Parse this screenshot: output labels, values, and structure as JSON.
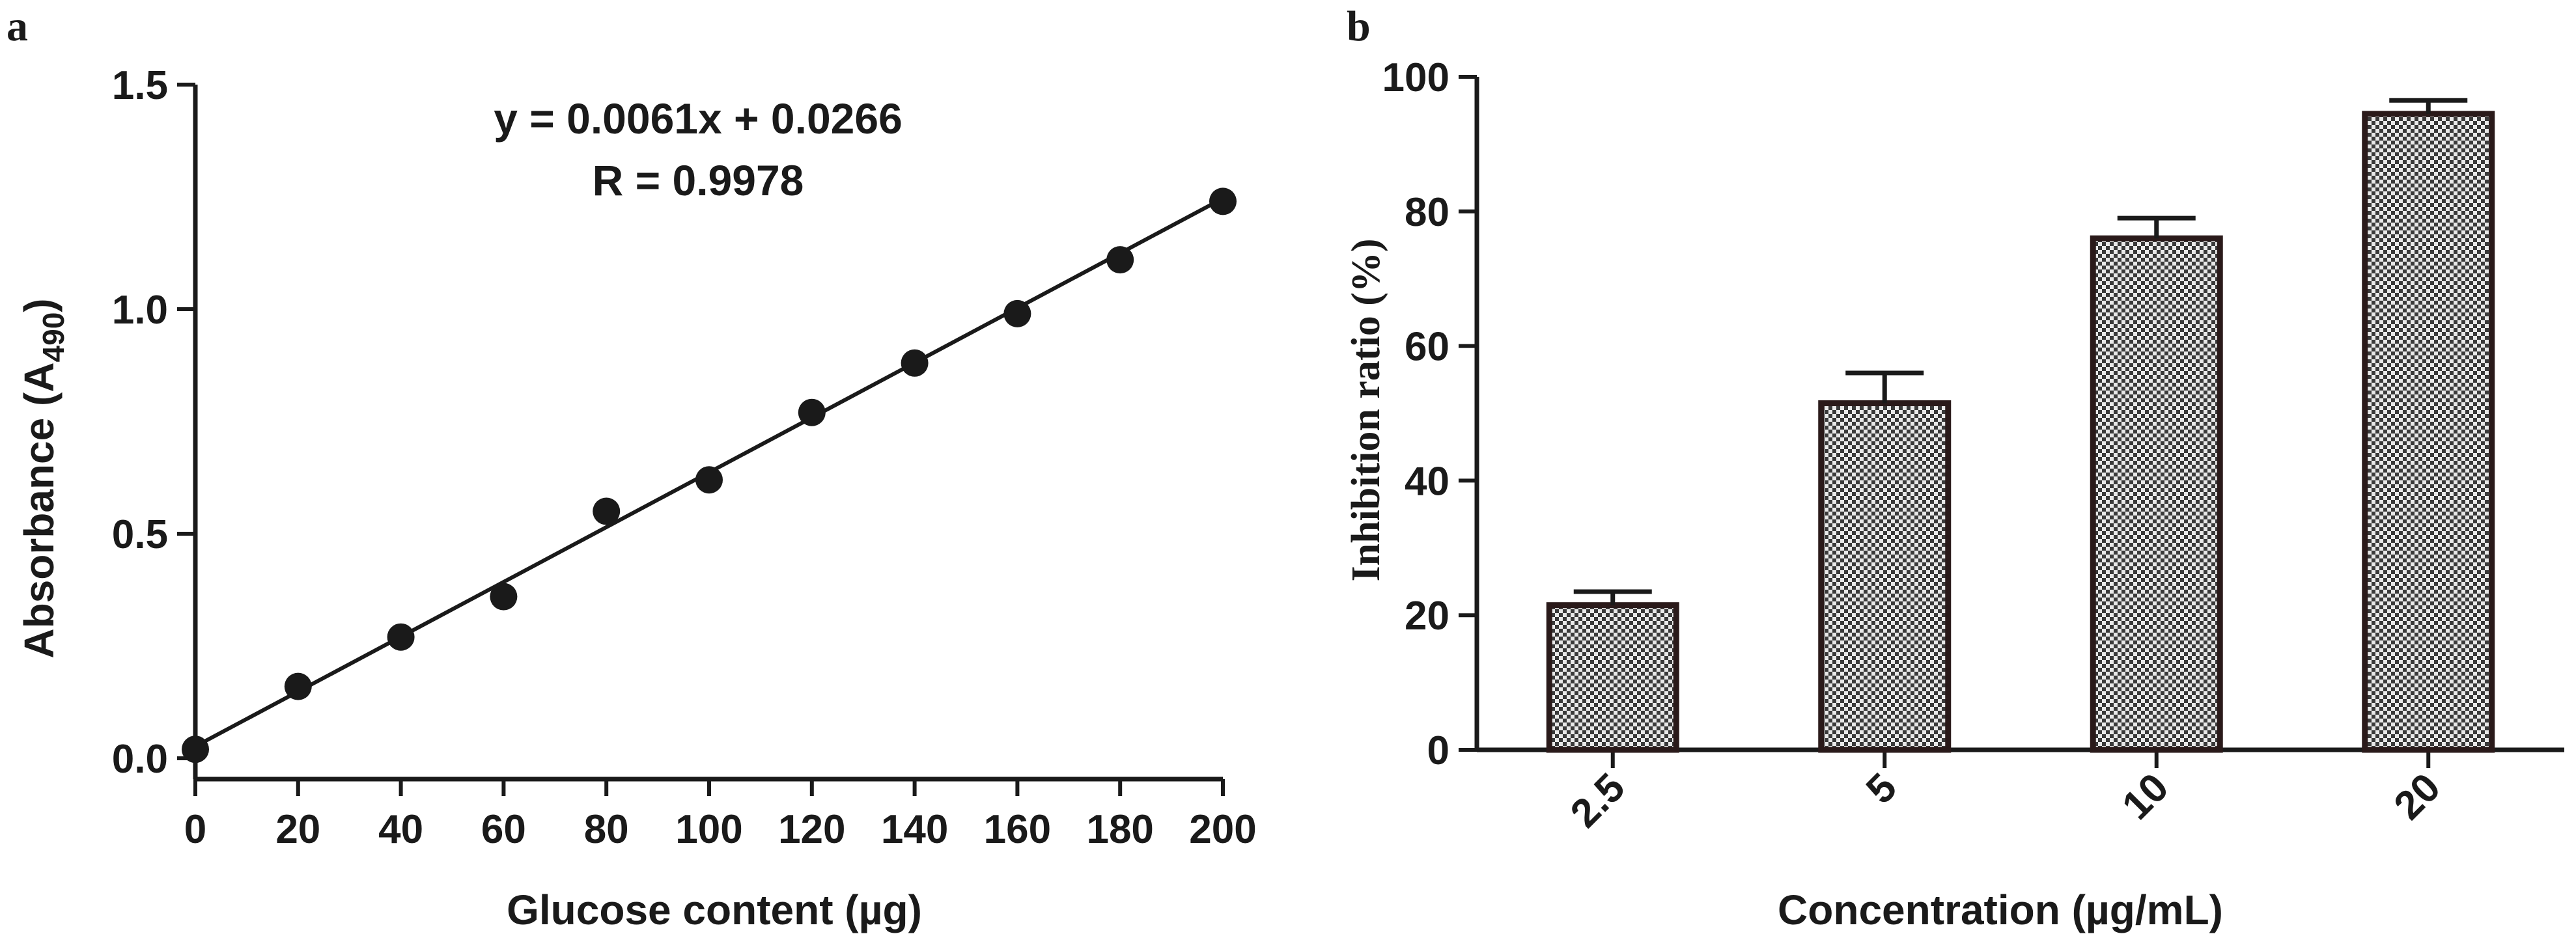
{
  "chart_data": [
    {
      "panel_label": "a",
      "type": "scatter",
      "title": "",
      "xlabel": "Glucose content (µg)",
      "ylabel_main": "Absorbance (A",
      "ylabel_sub": "490",
      "ylabel_close": ")",
      "xlim": [
        0,
        200
      ],
      "ylim": [
        0,
        1.5
      ],
      "x_ticks": [
        0,
        20,
        40,
        60,
        80,
        100,
        120,
        140,
        160,
        180,
        200
      ],
      "x_tick_labels": [
        "0",
        "20",
        "40",
        "60",
        "80",
        "100",
        "120",
        "140",
        "160",
        "180",
        "200"
      ],
      "y_ticks": [
        0,
        0.5,
        1.0,
        1.5
      ],
      "y_tick_labels": [
        "0.0",
        "0.5",
        "1.0",
        "1.5"
      ],
      "x": [
        0,
        20,
        40,
        60,
        80,
        100,
        120,
        140,
        160,
        180,
        200
      ],
      "y": [
        0.02,
        0.16,
        0.27,
        0.36,
        0.55,
        0.62,
        0.77,
        0.88,
        0.99,
        1.11,
        1.24
      ],
      "fit": {
        "slope": 0.0061,
        "intercept": 0.0266,
        "x_range": [
          0,
          200
        ]
      },
      "equation_text": "y = 0.0061x + 0.0266",
      "r_text": "R = 0.9978",
      "grid": false
    },
    {
      "panel_label": "b",
      "type": "bar",
      "title": "",
      "xlabel": "Concentration (µg/mL)",
      "ylabel": "Inhibition ratio (%)",
      "categories": [
        "2.5",
        "5",
        "10",
        "20"
      ],
      "values": [
        21.5,
        51.5,
        76,
        94.5
      ],
      "errors": [
        2,
        4.5,
        3,
        2
      ],
      "ylim": [
        0,
        100
      ],
      "y_ticks": [
        0,
        20,
        40,
        60,
        80,
        100
      ],
      "y_tick_labels": [
        "0",
        "20",
        "40",
        "60",
        "80",
        "100"
      ],
      "bar_pattern": "checkered",
      "grid": false
    }
  ],
  "colors": {
    "ink": "#1a1a1a",
    "bar_border": "#2a1a1a",
    "pattern_dark": "#3a3a3a",
    "pattern_light": "#e8e8e8"
  }
}
